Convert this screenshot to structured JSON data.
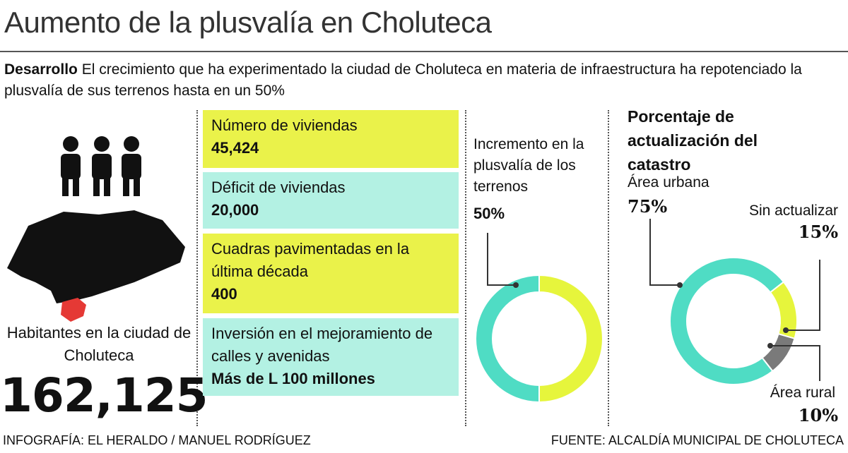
{
  "title": "Aumento de la plusvalía en Choluteca",
  "intro": {
    "lead": "Desarrollo",
    "text": "El crecimiento que ha experimentado la ciudad de Choluteca en materia de infraestructura ha repotenciado la plusvalía de sus terrenos hasta en un 50%"
  },
  "population": {
    "label": "Habitantes en la ciudad de Choluteca",
    "value": "162,125"
  },
  "stats": [
    {
      "label": "Número de viviendas",
      "value": "45,424"
    },
    {
      "label": "Déficit de viviendas",
      "value": "20,000"
    },
    {
      "label": "Cuadras pavimentadas en la última década",
      "value": "400"
    },
    {
      "label": "Inversión en el mejoramiento de calles y avenidas",
      "value": "Más de L 100 millones"
    }
  ],
  "charts": [
    {
      "type": "donut",
      "title": "Incremento en la plusvalía de los terrenos",
      "segments": [
        {
          "value": 50,
          "value_label": "50%",
          "color": "#4fdcc4"
        },
        {
          "value": 50,
          "color": "#e6f53c"
        }
      ]
    },
    {
      "type": "donut",
      "title": "Porcentaje de actualización del catastro",
      "segments": [
        {
          "name": "Área urbana",
          "value": 75,
          "value_label": "75%",
          "color": "#4fdcc4"
        },
        {
          "name": "Sin actualizar",
          "value": 15,
          "value_label": "15%",
          "color": "#e6f53c"
        },
        {
          "name": "Área rural",
          "value": 10,
          "value_label": "10%",
          "color": "#7a7a7a"
        }
      ]
    }
  ],
  "footer": {
    "left": "INFOGRAFÍA: EL HERALDO / MANUEL RODRÍGUEZ",
    "right": "FUENTE: ALCALDÍA MUNICIPAL DE CHOLUTECA"
  }
}
